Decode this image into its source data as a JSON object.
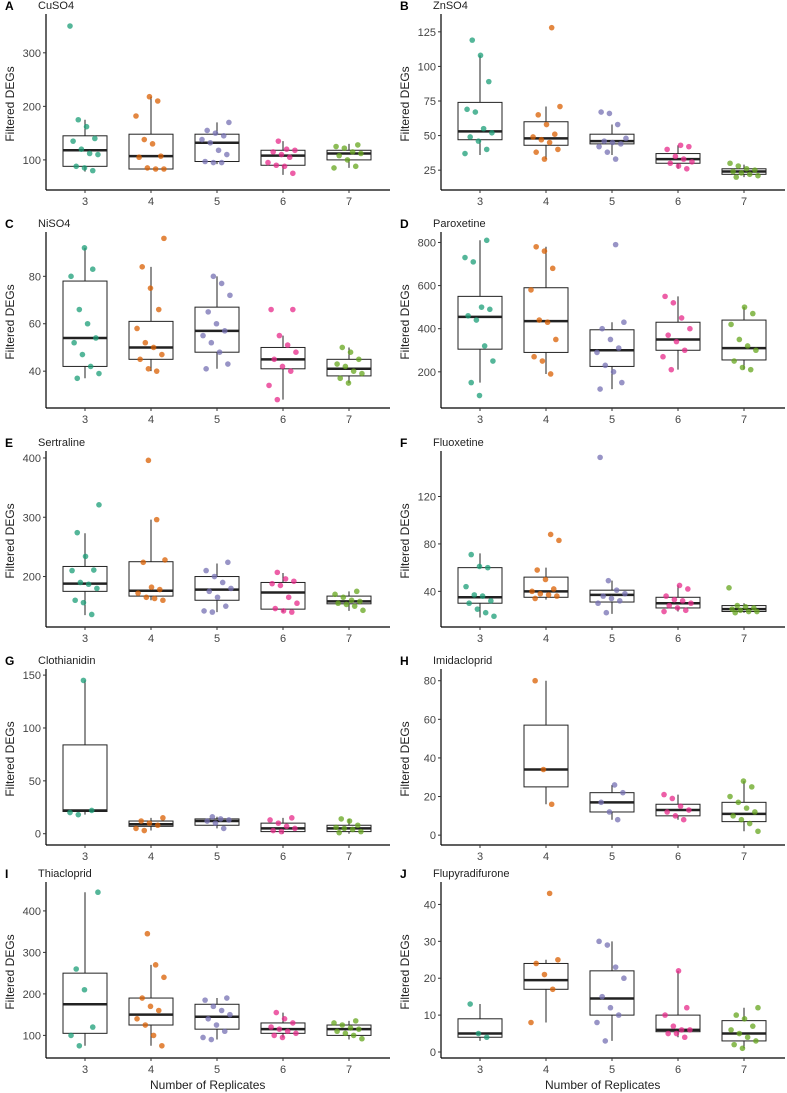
{
  "colors": {
    "3": "#1b9e77",
    "4": "#d95f02",
    "5": "#7570b3",
    "6": "#e7298a",
    "7": "#66a61e"
  },
  "y_axis_label": "Filtered DEGs",
  "x_axis_label": "Number of Replicates",
  "chart_data": [
    {
      "type": "box",
      "letter": "A",
      "title": "CuSO4",
      "ylim": [
        55,
        365
      ],
      "ticks": [
        100,
        200,
        300
      ],
      "categories": [
        "3",
        "4",
        "5",
        "6",
        "7"
      ],
      "boxes": [
        [
          78,
          88,
          118,
          145,
          175
        ],
        [
          83,
          83,
          107,
          148,
          218
        ],
        [
          92,
          97,
          132,
          148,
          170
        ],
        [
          72,
          90,
          108,
          118,
          135
        ],
        [
          85,
          100,
          112,
          118,
          130
        ]
      ],
      "points": [
        [
          350,
          175,
          162,
          140,
          135,
          120,
          112,
          110,
          88,
          85,
          80
        ],
        [
          218,
          210,
          182,
          138,
          130,
          107,
          105,
          85,
          83,
          83
        ],
        [
          170,
          155,
          150,
          145,
          138,
          132,
          118,
          110,
          97,
          95,
          95
        ],
        [
          135,
          120,
          118,
          115,
          110,
          105,
          95,
          90,
          88,
          75
        ],
        [
          128,
          125,
          122,
          115,
          112,
          108,
          100,
          88,
          85
        ]
      ]
    },
    {
      "type": "box",
      "letter": "B",
      "title": "ZnSO4",
      "ylim": [
        15,
        135
      ],
      "ticks": [
        25,
        50,
        75,
        100,
        125
      ],
      "categories": [
        "3",
        "4",
        "5",
        "6",
        "7"
      ],
      "boxes": [
        [
          36,
          47,
          53,
          74,
          108
        ],
        [
          33,
          43,
          48,
          60,
          71
        ],
        [
          36,
          44,
          46,
          51,
          58
        ],
        [
          26,
          30,
          33,
          37,
          43
        ],
        [
          20,
          22,
          24,
          26,
          29
        ]
      ],
      "points": [
        [
          119,
          108,
          89,
          69,
          67,
          55,
          52,
          49,
          46,
          40,
          37
        ],
        [
          128,
          71,
          65,
          58,
          51,
          49,
          47,
          45,
          40,
          38,
          33
        ],
        [
          67,
          66,
          58,
          48,
          46,
          45,
          44,
          42,
          38,
          33
        ],
        [
          43,
          42,
          40,
          35,
          33,
          31,
          30,
          28,
          26
        ],
        [
          30,
          28,
          26,
          25,
          24,
          23,
          22,
          21,
          20
        ]
      ]
    },
    {
      "type": "box",
      "letter": "C",
      "title": "NiSO4",
      "ylim": [
        27,
        97
      ],
      "ticks": [
        40,
        60,
        80
      ],
      "categories": [
        "3",
        "4",
        "5",
        "6",
        "7"
      ],
      "boxes": [
        [
          37,
          42,
          54,
          78,
          92
        ],
        [
          40,
          45,
          50,
          61,
          84
        ],
        [
          41,
          48,
          57,
          67,
          80
        ],
        [
          28,
          41,
          45,
          50,
          55
        ],
        [
          35,
          38,
          41,
          45,
          50
        ]
      ],
      "points": [
        [
          92,
          83,
          80,
          66,
          60,
          54,
          52,
          47,
          42,
          39,
          37
        ],
        [
          96,
          84,
          75,
          66,
          58,
          52,
          50,
          47,
          45,
          41,
          40
        ],
        [
          80,
          77,
          72,
          65,
          60,
          57,
          55,
          52,
          48,
          43,
          41
        ],
        [
          66,
          66,
          55,
          51,
          48,
          45,
          42,
          40,
          34,
          28
        ],
        [
          50,
          48,
          45,
          43,
          42,
          40,
          39,
          37,
          35
        ]
      ]
    },
    {
      "type": "box",
      "letter": "D",
      "title": "Paroxetine",
      "ylim": [
        60,
        830
      ],
      "ticks": [
        200,
        400,
        600,
        800
      ],
      "categories": [
        "3",
        "4",
        "5",
        "6",
        "7"
      ],
      "boxes": [
        [
          150,
          305,
          455,
          550,
          810
        ],
        [
          190,
          290,
          435,
          590,
          780
        ],
        [
          120,
          225,
          300,
          395,
          430
        ],
        [
          210,
          300,
          350,
          430,
          550
        ],
        [
          210,
          255,
          310,
          440,
          500
        ]
      ],
      "points": [
        [
          810,
          730,
          710,
          500,
          490,
          460,
          440,
          320,
          250,
          150,
          90
        ],
        [
          780,
          760,
          680,
          580,
          440,
          430,
          350,
          270,
          250,
          190
        ],
        [
          790,
          430,
          400,
          350,
          310,
          290,
          230,
          200,
          150,
          120
        ],
        [
          550,
          520,
          450,
          400,
          370,
          340,
          300,
          270,
          210
        ],
        [
          500,
          470,
          420,
          350,
          320,
          300,
          250,
          220,
          210
        ]
      ]
    },
    {
      "type": "box",
      "letter": "E",
      "title": "Sertraline",
      "ylim": [
        125,
        405
      ],
      "ticks": [
        200,
        300,
        400
      ],
      "categories": [
        "3",
        "4",
        "5",
        "6",
        "7"
      ],
      "boxes": [
        [
          135,
          175,
          188,
          217,
          273
        ],
        [
          160,
          167,
          176,
          225,
          296
        ],
        [
          140,
          160,
          178,
          200,
          222
        ],
        [
          140,
          145,
          173,
          190,
          206
        ],
        [
          142,
          154,
          158,
          167,
          175
        ]
      ],
      "points": [
        [
          321,
          274,
          234,
          211,
          210,
          190,
          187,
          180,
          160,
          156,
          136
        ],
        [
          396,
          296,
          228,
          224,
          182,
          178,
          172,
          165,
          163,
          160
        ],
        [
          224,
          210,
          200,
          190,
          180,
          175,
          165,
          150,
          142,
          140
        ],
        [
          207,
          196,
          192,
          188,
          185,
          165,
          155,
          146,
          142,
          140
        ],
        [
          175,
          170,
          165,
          160,
          158,
          155,
          153,
          150,
          143
        ]
      ]
    },
    {
      "type": "box",
      "letter": "F",
      "title": "Fluoxetine",
      "ylim": [
        15,
        155
      ],
      "ticks": [
        40,
        80,
        120
      ],
      "categories": [
        "3",
        "4",
        "5",
        "6",
        "7"
      ],
      "boxes": [
        [
          18,
          30,
          35,
          60,
          72
        ],
        [
          33,
          35,
          40,
          52,
          60
        ],
        [
          21,
          31,
          37,
          41,
          49
        ],
        [
          23,
          26,
          30,
          35,
          45
        ],
        [
          22,
          23,
          25,
          28,
          30
        ]
      ],
      "points": [
        [
          71,
          61,
          60,
          44,
          37,
          36,
          32,
          30,
          25,
          22,
          19
        ],
        [
          88,
          83,
          58,
          50,
          42,
          40,
          38,
          37,
          36,
          34
        ],
        [
          153,
          49,
          41,
          38,
          36,
          34,
          32,
          30,
          22
        ],
        [
          45,
          42,
          36,
          33,
          32,
          30,
          28,
          26,
          24,
          23
        ],
        [
          43,
          28,
          27,
          26,
          25,
          24,
          23,
          23,
          22
        ]
      ]
    },
    {
      "type": "box",
      "letter": "G",
      "title": "Clothianidin",
      "ylim": [
        -5,
        152
      ],
      "ticks": [
        0,
        50,
        100,
        150
      ],
      "categories": [
        "3",
        "4",
        "5",
        "6",
        "7"
      ],
      "boxes": [
        [
          18,
          21,
          22,
          84,
          145
        ],
        [
          3,
          7,
          9,
          12,
          15
        ],
        [
          5,
          8,
          12,
          14,
          16
        ],
        [
          0,
          2,
          5,
          10,
          15
        ],
        [
          0,
          2,
          5,
          8,
          14
        ]
      ],
      "points": [
        [
          145,
          22,
          20,
          18
        ],
        [
          15,
          12,
          10,
          8,
          5,
          3
        ],
        [
          16,
          14,
          13,
          12,
          10,
          5
        ],
        [
          15,
          13,
          10,
          7,
          5,
          3,
          2
        ],
        [
          14,
          12,
          8,
          6,
          5,
          4,
          2,
          1
        ]
      ]
    },
    {
      "type": "box",
      "letter": "H",
      "title": "Imidacloprid",
      "ylim": [
        -2,
        84
      ],
      "ticks": [
        0,
        20,
        40,
        60,
        80
      ],
      "categories": [
        "3",
        "4",
        "5",
        "6",
        "7"
      ],
      "boxes": [
        null,
        [
          16,
          25,
          34,
          57,
          80
        ],
        [
          8,
          12,
          17,
          22,
          26
        ],
        [
          8,
          10,
          13,
          16,
          21
        ],
        [
          2,
          7,
          11,
          17,
          28
        ]
      ],
      "points": [
        [],
        [
          80,
          34,
          16
        ],
        [
          26,
          22,
          17,
          12,
          8
        ],
        [
          21,
          19,
          15,
          13,
          12,
          10,
          8
        ],
        [
          28,
          25,
          20,
          17,
          14,
          12,
          10,
          8,
          6,
          2
        ]
      ]
    },
    {
      "type": "box",
      "letter": "I",
      "title": "Thiacloprid",
      "ylim": [
        60,
        460
      ],
      "ticks": [
        100,
        200,
        300,
        400
      ],
      "categories": [
        "3",
        "4",
        "5",
        "6",
        "7"
      ],
      "boxes": [
        [
          75,
          105,
          175,
          250,
          445
        ],
        [
          75,
          125,
          150,
          190,
          270
        ],
        [
          90,
          115,
          145,
          175,
          190
        ],
        [
          95,
          105,
          115,
          130,
          155
        ],
        [
          90,
          100,
          115,
          125,
          135
        ]
      ],
      "points": [
        [
          445,
          260,
          210,
          120,
          100,
          75
        ],
        [
          345,
          270,
          240,
          190,
          170,
          160,
          140,
          125,
          100,
          75
        ],
        [
          190,
          185,
          170,
          160,
          150,
          140,
          125,
          110,
          95,
          90
        ],
        [
          155,
          140,
          130,
          120,
          115,
          110,
          105,
          100,
          95
        ],
        [
          135,
          130,
          125,
          118,
          115,
          110,
          105,
          100,
          92
        ]
      ]
    },
    {
      "type": "box",
      "letter": "J",
      "title": "Flupyradifurone",
      "ylim": [
        0,
        45
      ],
      "ticks": [
        0,
        10,
        20,
        30,
        40
      ],
      "categories": [
        "3",
        "4",
        "5",
        "6",
        "7"
      ],
      "boxes": [
        [
          3,
          4,
          5,
          9,
          13
        ],
        [
          8,
          17,
          19.5,
          24,
          25
        ],
        [
          3,
          10,
          14.5,
          22,
          30
        ],
        [
          4,
          5.5,
          6,
          10,
          22
        ],
        [
          1,
          3,
          5,
          8.5,
          12
        ]
      ],
      "points": [
        [
          13,
          5,
          4
        ],
        [
          43,
          25,
          24,
          21,
          17,
          8
        ],
        [
          30,
          29,
          23,
          20,
          15,
          12,
          10,
          8,
          3
        ],
        [
          22,
          12,
          10,
          7,
          6,
          6,
          5,
          5,
          4
        ],
        [
          12,
          10,
          9,
          7,
          6,
          5,
          4,
          3,
          2,
          1
        ]
      ]
    }
  ]
}
